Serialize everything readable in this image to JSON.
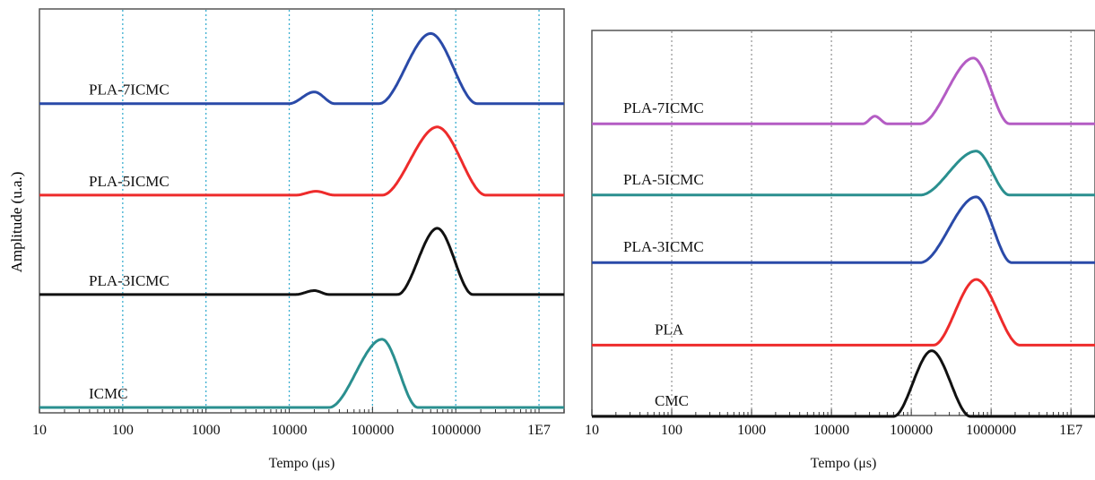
{
  "y_label_left": "Amplitude (u.a.)",
  "chart_data": [
    {
      "type": "line",
      "xlabel": "Tempo (μs)",
      "ylabel": "Amplitude (u.a.)",
      "xscale": "log",
      "xlim": [
        10,
        20000000
      ],
      "xticks": [
        10,
        100,
        1000,
        10000,
        100000,
        1000000,
        10000000
      ],
      "xtick_labels": [
        "10",
        "100",
        "1000",
        "10000",
        "100000",
        "1000000",
        "1E7"
      ],
      "grid": "vertical dotted",
      "grid_color": "#3aaed0",
      "series": [
        {
          "name": "PLA-7ICMC",
          "color": "#2a4aa8",
          "baseline": 0.78,
          "peaks": [
            {
              "lo": 10000,
              "hi": 35000,
              "center": 20000,
              "height": 0.03
            },
            {
              "lo": 120000,
              "hi": 1800000,
              "center": 500000,
              "height": 0.18
            }
          ]
        },
        {
          "name": "PLA-5ICMC",
          "color": "#ee2b2b",
          "baseline": 0.545,
          "peaks": [
            {
              "lo": 12000,
              "hi": 35000,
              "center": 21000,
              "height": 0.01
            },
            {
              "lo": 130000,
              "hi": 2300000,
              "center": 600000,
              "height": 0.175
            }
          ]
        },
        {
          "name": "PLA-3ICMC",
          "color": "#111111",
          "baseline": 0.29,
          "peaks": [
            {
              "lo": 12000,
              "hi": 30000,
              "center": 20000,
              "height": 0.01
            },
            {
              "lo": 200000,
              "hi": 1600000,
              "center": 600000,
              "height": 0.17
            }
          ]
        },
        {
          "name": "ICMC",
          "color": "#2a8f8f",
          "baseline": 0.0,
          "peaks": [
            {
              "lo": 30000,
              "hi": 350000,
              "center": 130000,
              "height": 0.175
            }
          ]
        }
      ]
    },
    {
      "type": "line",
      "xlabel": "Tempo (μs)",
      "ylabel": "",
      "xscale": "log",
      "xlim": [
        10,
        20000000
      ],
      "xticks": [
        10,
        100,
        1000,
        10000,
        100000,
        1000000,
        10000000
      ],
      "xtick_labels": [
        "10",
        "100",
        "1000",
        "10000",
        "100000",
        "1000000",
        "1E7"
      ],
      "grid": "vertical dotted",
      "grid_color": "#999999",
      "series": [
        {
          "name": "PLA-7ICMC",
          "color": "#b45cc4",
          "baseline": 0.78,
          "peaks": [
            {
              "lo": 25000,
              "hi": 50000,
              "center": 35000,
              "height": 0.02
            },
            {
              "lo": 130000,
              "hi": 1700000,
              "center": 600000,
              "height": 0.175
            }
          ]
        },
        {
          "name": "PLA-5ICMC",
          "color": "#2a8f8f",
          "baseline": 0.59,
          "peaks": [
            {
              "lo": 130000,
              "hi": 1700000,
              "center": 650000,
              "height": 0.117
            }
          ]
        },
        {
          "name": "PLA-3ICMC",
          "color": "#2a4aa8",
          "baseline": 0.41,
          "peaks": [
            {
              "lo": 130000,
              "hi": 1800000,
              "center": 650000,
              "height": 0.175
            }
          ]
        },
        {
          "name": "PLA",
          "color": "#ee2b2b",
          "baseline": 0.19,
          "peaks": [
            {
              "lo": 190000,
              "hi": 2300000,
              "center": 650000,
              "height": 0.175
            }
          ]
        },
        {
          "name": "CMC",
          "color": "#111111",
          "baseline": 0.0,
          "peaks": [
            {
              "lo": 60000,
              "hi": 550000,
              "center": 180000,
              "height": 0.175
            }
          ]
        }
      ]
    }
  ]
}
